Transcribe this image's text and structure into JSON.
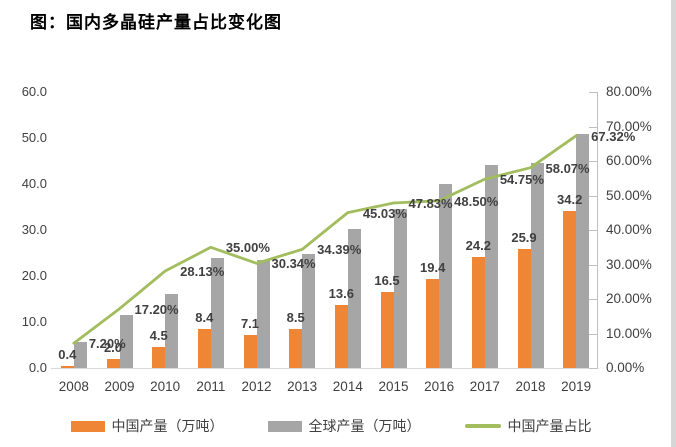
{
  "header": {
    "title": "图：国内多晶硅产量占比变化图"
  },
  "colors": {
    "china_bar": "#EF8635",
    "global_bar": "#A6A6A6",
    "share_line": "#A2BD5E",
    "axis_text": "#3f3f3f",
    "data_label_text": "#404040",
    "axis_line": "#bfbfbf",
    "bottom_axis_line": "#d9d9d9"
  },
  "chart_data": {
    "type": "bar+line",
    "title": "图：国内多晶硅产量占比变化图",
    "categories": [
      "2008",
      "2009",
      "2010",
      "2011",
      "2012",
      "2013",
      "2014",
      "2015",
      "2016",
      "2017",
      "2018",
      "2019"
    ],
    "series": [
      {
        "name": "中国产量（万吨）",
        "type": "bar",
        "axis": "left",
        "color": "#EF8635",
        "values": [
          0.4,
          2.0,
          4.5,
          8.4,
          7.1,
          8.5,
          13.6,
          16.5,
          19.4,
          24.2,
          25.9,
          34.2
        ],
        "data_labels": [
          "0.4",
          "2.0",
          "4.5",
          "8.4",
          "7.1",
          "8.5",
          "13.6",
          "16.5",
          "19.4",
          "24.2",
          "25.9",
          "34.2"
        ]
      },
      {
        "name": "全球产量（万吨）",
        "type": "bar",
        "axis": "left",
        "color": "#A6A6A6",
        "values": [
          5.6,
          11.6,
          16.0,
          24.0,
          23.4,
          24.7,
          30.2,
          34.5,
          40.0,
          44.2,
          44.6,
          50.8
        ]
      },
      {
        "name": "中国产量占比",
        "type": "line",
        "axis": "right",
        "color": "#A2BD5E",
        "values": [
          7.2,
          17.2,
          28.13,
          35.0,
          30.34,
          34.39,
          45.03,
          47.83,
          48.5,
          54.75,
          58.07,
          67.32
        ],
        "data_labels": [
          "7.20%",
          "17.20%",
          "28.13%",
          "35.00%",
          "30.34%",
          "34.39%",
          "45.03%",
          "47.83%",
          "48.50%",
          "54.75%",
          "58.07%",
          "67.32%"
        ]
      }
    ],
    "left_axis": {
      "min": 0,
      "max": 60,
      "step": 10,
      "tick_labels": [
        "0.0",
        "10.0",
        "20.0",
        "30.0",
        "40.0",
        "50.0",
        "60.0"
      ]
    },
    "right_axis": {
      "min": 0,
      "max": 80,
      "step": 10,
      "tick_labels": [
        "0.00%",
        "10.00%",
        "20.00%",
        "30.00%",
        "40.00%",
        "50.00%",
        "60.00%",
        "70.00%",
        "80.00%"
      ]
    },
    "legend_position": "bottom",
    "gridlines": "off"
  }
}
